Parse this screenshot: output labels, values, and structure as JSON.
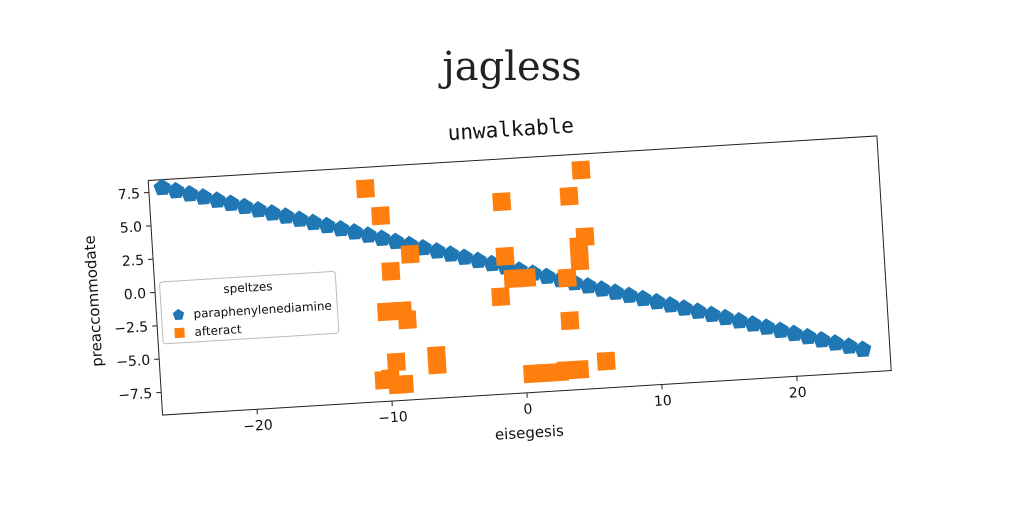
{
  "page": {
    "title": "jagless"
  },
  "chart_data": {
    "type": "scatter",
    "title": "unwalkable",
    "xlabel": "eisegesis",
    "ylabel": "preaccommodate",
    "xlim": [
      -27,
      27
    ],
    "ylim": [
      -9.2,
      8.4
    ],
    "xticks": [
      -20,
      -10,
      0,
      10,
      20
    ],
    "xtick_labels": [
      "−20",
      "−10",
      "0",
      "10",
      "20"
    ],
    "yticks": [
      7.5,
      5.0,
      2.5,
      0.0,
      -2.5,
      -5.0,
      -7.5
    ],
    "ytick_labels": [
      "7.5",
      "5.0",
      "2.5",
      "0.0",
      "−2.5",
      "−5.0",
      "−7.5"
    ],
    "grid": false,
    "legend": {
      "title": "speltzes",
      "position": "center-left"
    },
    "colors": {
      "series_1": "#1f77b4",
      "series_2": "#ff7f0e"
    },
    "series": [
      {
        "name": "paraphenylenediamine",
        "marker": "pentagon",
        "x": [
          -26,
          -25,
          -24,
          -23,
          -22,
          -21,
          -20,
          -19,
          -18,
          -17,
          -16,
          -15,
          -14,
          -13,
          -12,
          -11,
          -10,
          -9,
          -8,
          -7,
          -6,
          -5,
          -4,
          -3,
          -2,
          -1,
          0,
          1,
          2,
          3,
          4,
          5,
          6,
          7,
          8,
          9,
          10,
          11,
          12,
          13,
          14,
          15,
          16,
          17,
          18,
          19,
          20,
          21,
          22,
          23,
          24,
          25
        ],
        "y": [
          7.8,
          7.5,
          7.2,
          6.9,
          6.6,
          6.3,
          6.0,
          5.7,
          5.4,
          5.1,
          4.8,
          4.5,
          4.2,
          3.9,
          3.6,
          3.3,
          3.0,
          2.7,
          2.4,
          2.1,
          1.8,
          1.5,
          1.2,
          0.9,
          0.6,
          0.3,
          0.0,
          -0.3,
          -0.6,
          -0.9,
          -1.2,
          -1.5,
          -1.8,
          -2.1,
          -2.4,
          -2.7,
          -3.0,
          -3.3,
          -3.6,
          -3.9,
          -4.2,
          -4.5,
          -4.8,
          -5.1,
          -5.4,
          -5.7,
          -6.0,
          -6.3,
          -6.6,
          -6.9,
          -7.2,
          -7.5
        ]
      },
      {
        "name": "afteract",
        "marker": "square",
        "x": [
          -11,
          -10,
          -9.5,
          -8,
          -10,
          -8.8,
          -8.5,
          -9.5,
          -6.5,
          -6.5,
          -10,
          -10.5,
          -9.5,
          -9,
          -1,
          -1,
          -0.5,
          0.5,
          -1.5,
          0.5,
          1.5,
          2.5,
          3,
          4,
          4,
          4.5,
          4.5,
          5,
          5,
          3.5,
          3.5,
          6
        ],
        "y": [
          6.8,
          4.7,
          0.5,
          1.7,
          -2.5,
          -2.5,
          -3.2,
          -6.3,
          -6.0,
          -6.7,
          -7.5,
          -7.6,
          -8.0,
          -8.0,
          5.2,
          1.1,
          -0.6,
          -0.6,
          -1.9,
          -7.8,
          -7.8,
          -7.8,
          -7.7,
          -7.7,
          5.3,
          1.5,
          0.4,
          2.2,
          7.2,
          -0.8,
          -4.0,
          -7.2
        ]
      }
    ]
  }
}
